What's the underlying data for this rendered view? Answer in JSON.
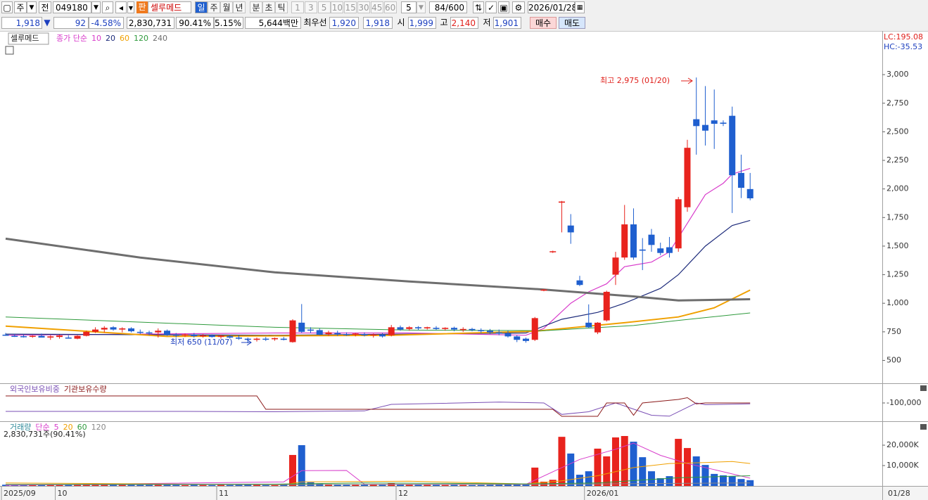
{
  "toolbar": {
    "market": "주",
    "code_label": "전",
    "code": "049180",
    "badge": "판",
    "name": "셀루메드",
    "periods": [
      "일",
      "주",
      "월",
      "년",
      "분",
      "초",
      "틱"
    ],
    "intervals": [
      "1",
      "3",
      "5",
      "10",
      "15",
      "30",
      "45",
      "60"
    ],
    "unit": "5",
    "range": "84/600",
    "date": "2026/01/28"
  },
  "quote": {
    "price": "1,918",
    "direction": "▼",
    "change": "92",
    "change_pct": "-4.58%",
    "volume": "2,830,731",
    "volume_ratio": "90.41%",
    "turnover": "5.15%",
    "amount": "5,644백만",
    "best_label": "최우선",
    "ask": "1,920",
    "bid": "1,918",
    "open_label": "시",
    "open": "1,999",
    "high_label": "고",
    "high": "2,140",
    "low_label": "저",
    "low": "1,901",
    "buy": "매수",
    "sell": "매도"
  },
  "chart_data": [
    {
      "type": "candlestick",
      "title": "셀루메드",
      "indicator_label": "종가 단순",
      "lc": "LC:195.08",
      "hc": "HC:-35.53",
      "up_color": "#e8231d",
      "down_color": "#1f5fcf",
      "open": [
        725,
        715,
        712,
        708,
        715,
        700,
        705,
        700,
        690,
        715,
        750,
        770,
        790,
        770,
        780,
        750,
        745,
        745,
        760,
        725,
        718,
        725,
        712,
        718,
        705,
        712,
        700,
        690,
        680,
        690,
        685,
        690,
        660,
        830,
        770,
        765,
        730,
        740,
        730,
        725,
        730,
        720,
        725,
        720,
        790,
        775,
        790,
        780,
        785,
        775,
        785,
        770,
        775,
        765,
        760,
        745,
        735,
        710,
        690,
        680,
        1110,
        1450,
        1880,
        1680,
        1200,
        830,
        745,
        850,
        1250,
        1400,
        1690,
        1470,
        1600,
        1480,
        1490,
        1480,
        1840,
        2610,
        2560,
        2600,
        2580,
        2640,
        2140,
        1999
      ],
      "high": [
        740,
        730,
        725,
        720,
        735,
        720,
        725,
        720,
        720,
        760,
        790,
        800,
        800,
        790,
        790,
        770,
        760,
        780,
        770,
        740,
        735,
        740,
        730,
        728,
        725,
        725,
        720,
        700,
        700,
        705,
        700,
        705,
        860,
        993,
        790,
        780,
        760,
        760,
        745,
        740,
        745,
        735,
        740,
        810,
        805,
        800,
        800,
        795,
        800,
        790,
        795,
        790,
        785,
        780,
        775,
        770,
        760,
        720,
        700,
        880,
        1125,
        1460,
        1895,
        1780,
        1240,
        990,
        835,
        1110,
        1450,
        1860,
        1830,
        1570,
        1650,
        1530,
        1580,
        1930,
        2430,
        2975,
        2900,
        2870,
        2600,
        2720,
        2300,
        2140
      ],
      "low": [
        715,
        705,
        700,
        698,
        705,
        680,
        690,
        690,
        685,
        710,
        740,
        745,
        760,
        745,
        745,
        730,
        720,
        700,
        715,
        700,
        705,
        700,
        700,
        700,
        690,
        690,
        680,
        650,
        665,
        670,
        672,
        675,
        655,
        740,
        740,
        720,
        715,
        715,
        715,
        710,
        710,
        700,
        700,
        710,
        760,
        760,
        765,
        770,
        765,
        760,
        755,
        750,
        755,
        740,
        730,
        720,
        700,
        660,
        655,
        670,
        1105,
        1440,
        1620,
        1520,
        1150,
        785,
        730,
        840,
        1160,
        1380,
        1380,
        1290,
        1450,
        1420,
        1400,
        1450,
        1800,
        2300,
        2380,
        2350,
        2550,
        1790,
        1920,
        1901
      ],
      "close": [
        720,
        712,
        708,
        715,
        700,
        710,
        718,
        695,
        715,
        750,
        770,
        785,
        770,
        780,
        755,
        745,
        740,
        760,
        725,
        720,
        728,
        712,
        720,
        705,
        715,
        700,
        690,
        680,
        690,
        685,
        695,
        680,
        850,
        750,
        760,
        725,
        745,
        730,
        725,
        735,
        720,
        728,
        710,
        790,
        770,
        790,
        780,
        790,
        775,
        785,
        770,
        775,
        765,
        760,
        745,
        735,
        710,
        680,
        670,
        870,
        1120,
        1455,
        1890,
        1620,
        1160,
        790,
        830,
        1100,
        1400,
        1690,
        1400,
        1460,
        1510,
        1440,
        1440,
        1910,
        2360,
        2550,
        2510,
        2570,
        2570,
        2120,
        2010,
        1918
      ],
      "series": [
        {
          "name": "10",
          "color": "#d83ccb",
          "width": 1.2,
          "x": [
            0,
            30,
            45,
            58,
            60,
            63,
            65,
            67,
            69,
            72,
            74,
            76,
            78,
            80,
            81,
            83
          ],
          "values": [
            720,
            740,
            740,
            720,
            780,
            1000,
            1100,
            1170,
            1320,
            1360,
            1450,
            1700,
            1950,
            2050,
            2130,
            2180
          ]
        },
        {
          "name": "20",
          "color": "#1c2a7a",
          "width": 1.2,
          "x": [
            0,
            30,
            45,
            58,
            62,
            66,
            69,
            73,
            75,
            78,
            81,
            83
          ],
          "values": [
            730,
            720,
            730,
            740,
            860,
            920,
            1000,
            1130,
            1250,
            1500,
            1680,
            1725
          ]
        },
        {
          "name": "60",
          "color": "#f0a000",
          "width": 2,
          "x": [
            0,
            18,
            43,
            59,
            69,
            75,
            79,
            83
          ],
          "values": [
            800,
            710,
            720,
            755,
            830,
            880,
            960,
            1115
          ]
        },
        {
          "name": "120",
          "color": "#2e9a3c",
          "width": 1,
          "x": [
            0,
            30,
            45,
            60,
            70,
            75,
            83
          ],
          "values": [
            880,
            790,
            765,
            760,
            805,
            850,
            915
          ]
        },
        {
          "name": "240",
          "color": "#6e6e6e",
          "width": 3,
          "x": [
            0,
            15,
            30,
            45,
            60,
            70,
            75,
            83
          ],
          "values": [
            1565,
            1400,
            1270,
            1190,
            1120,
            1060,
            1025,
            1035
          ]
        }
      ],
      "annotations": [
        "최고 2,975 (01/20)",
        "최저 650 (11/07)"
      ],
      "ylim": [
        300,
        3370
      ],
      "yticks": [
        500,
        750,
        {
          "value": 1000,
          "label": "1,000"
        },
        {
          "value": 1250,
          "label": "1,250"
        },
        {
          "value": 1500,
          "label": "1,500"
        },
        {
          "value": 1750,
          "label": "1,750"
        },
        {
          "value": 2000,
          "label": "2,000"
        },
        {
          "value": 2250,
          "label": "2,250"
        },
        {
          "value": 2500,
          "label": "2,500"
        },
        {
          "value": 2750,
          "label": "2,750"
        },
        {
          "value": 3000,
          "label": "3,000"
        }
      ],
      "xlim": [
        -0.63,
        97.73
      ],
      "xticks": [
        {
          "value": 0,
          "label": "2025/09"
        },
        {
          "value": 6,
          "label": "10"
        },
        {
          "value": 24,
          "label": "11"
        },
        {
          "value": 44,
          "label": "12"
        },
        {
          "value": 65,
          "label": "2026/01"
        }
      ],
      "last_date": "01/28"
    },
    {
      "type": "line",
      "series": [
        {
          "name": "외국인보유비중",
          "color": "#7a4fb5",
          "x": [
            0,
            20,
            30,
            40,
            43,
            55,
            60,
            62,
            65,
            68,
            72,
            74,
            77,
            78,
            83
          ],
          "values": [
            -196000,
            -196000,
            -200000,
            -190000,
            -116000,
            -90000,
            -100000,
            -230000,
            -200000,
            -100000,
            -240000,
            -250000,
            -100000,
            -120000,
            -110000
          ]
        },
        {
          "name": "기관보유수량",
          "color": "#8b1a1a",
          "x": [
            0,
            28,
            29,
            61,
            62,
            66,
            67,
            69,
            70,
            71,
            75,
            76,
            77,
            78,
            83
          ],
          "values": [
            -20000,
            -20000,
            -172000,
            -172000,
            -252000,
            -252000,
            -100000,
            -100000,
            -240000,
            -100000,
            -60000,
            -40000,
            -110000,
            -100000,
            -100000
          ]
        }
      ],
      "ylim": [
        -300000,
        100000
      ],
      "yticks": [
        {
          "value": -100000,
          "label": "-100,000"
        }
      ]
    },
    {
      "type": "bar",
      "title": "거래량",
      "indicator_label": "단순",
      "value_label": "2,830,731주(90.41%)",
      "values": [
        600,
        500,
        400,
        450,
        700,
        900,
        500,
        600,
        700,
        900,
        1100,
        1000,
        800,
        700,
        600,
        500,
        500,
        700,
        800,
        500,
        400,
        500,
        450,
        400,
        500,
        450,
        500,
        600,
        500,
        450,
        400,
        700,
        15200,
        20000,
        1800,
        1200,
        900,
        800,
        700,
        600,
        700,
        600,
        500,
        1400,
        900,
        800,
        600,
        500,
        500,
        450,
        500,
        450,
        400,
        450,
        500,
        600,
        800,
        1000,
        700,
        9000,
        2100,
        3000,
        24100,
        15900,
        5500,
        7200,
        18300,
        14500,
        23800,
        24500,
        21700,
        14100,
        7200,
        3800,
        4800,
        23100,
        18600,
        14500,
        10300,
        5900,
        5200,
        4800,
        3400,
        2830.731
      ],
      "series": [
        {
          "name": "5",
          "color": "#d83ccb",
          "x": [
            0,
            31,
            33,
            38,
            40,
            58,
            62,
            64,
            68,
            70,
            73,
            76,
            79,
            83
          ],
          "values": [
            300,
            2000,
            7500,
            7600,
            800,
            800,
            9000,
            13000,
            18000,
            21000,
            15000,
            11000,
            8000,
            3800
          ]
        },
        {
          "name": "20",
          "color": "#f0a000",
          "x": [
            0,
            31,
            33,
            45,
            58,
            62,
            66,
            70,
            74,
            78,
            81,
            83
          ],
          "values": [
            1500,
            600,
            2000,
            2300,
            1000,
            2500,
            5000,
            9000,
            11000,
            11500,
            12000,
            11000
          ]
        },
        {
          "name": "60",
          "color": "#2e9a3c",
          "x": [
            0,
            30,
            40,
            58,
            66,
            75,
            83
          ],
          "values": [
            800,
            900,
            1500,
            1000,
            1500,
            4000,
            5000
          ]
        },
        {
          "name": "120",
          "color": "#888888",
          "x": [
            0,
            40,
            60,
            83
          ],
          "values": [
            600,
            700,
            800,
            1500
          ]
        }
      ],
      "ylim": [
        0,
        31400
      ],
      "yticks": [
        {
          "value": 10000,
          "label": "10,000K"
        },
        {
          "value": 20000,
          "label": "20,000K"
        }
      ]
    }
  ]
}
